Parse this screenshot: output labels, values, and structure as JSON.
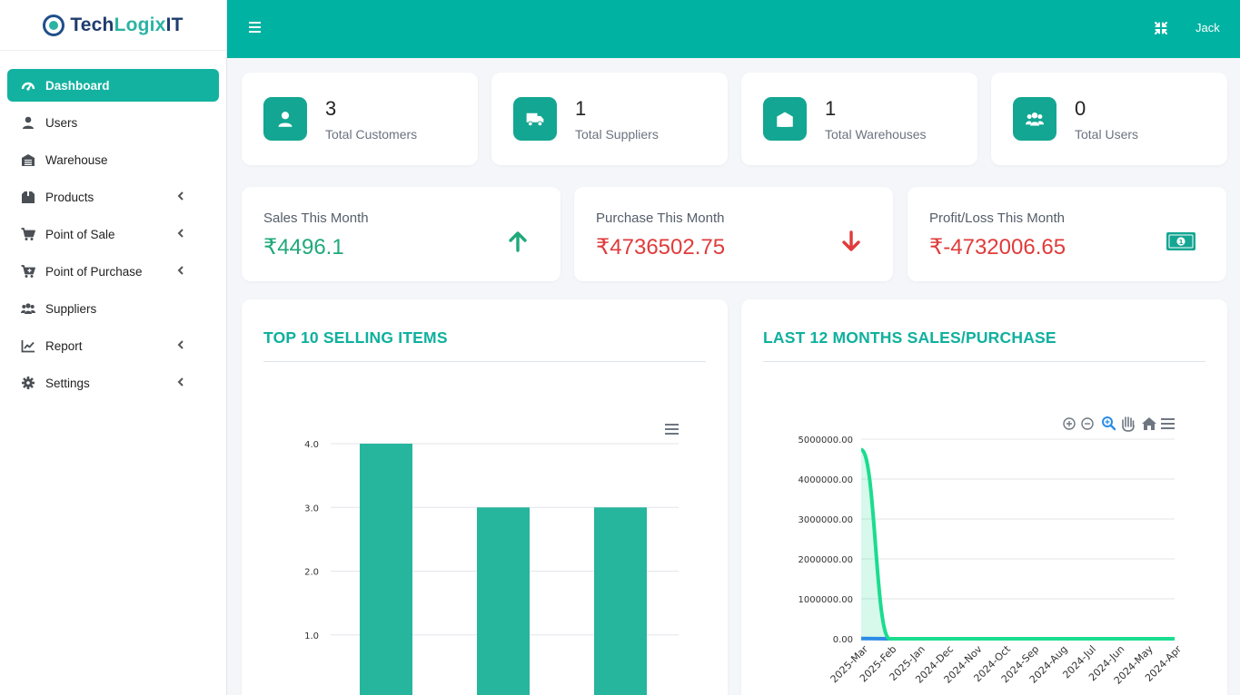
{
  "brand": {
    "part1": "Tech",
    "part2": "Logix",
    "part3": "IT"
  },
  "sidebar": {
    "items": [
      {
        "label": "Dashboard",
        "icon": "gauge-icon",
        "active": true,
        "has_children": false
      },
      {
        "label": "Users",
        "icon": "user-icon",
        "active": false,
        "has_children": false
      },
      {
        "label": "Warehouse",
        "icon": "warehouse-icon",
        "active": false,
        "has_children": false
      },
      {
        "label": "Products",
        "icon": "box-icon",
        "active": false,
        "has_children": true
      },
      {
        "label": "Point of Sale",
        "icon": "cart-icon",
        "active": false,
        "has_children": true
      },
      {
        "label": "Point of Purchase",
        "icon": "cart-plus-icon",
        "active": false,
        "has_children": true
      },
      {
        "label": "Suppliers",
        "icon": "users-icon",
        "active": false,
        "has_children": false
      },
      {
        "label": "Report",
        "icon": "chart-line-icon",
        "active": false,
        "has_children": true
      },
      {
        "label": "Settings",
        "icon": "gear-icon",
        "active": false,
        "has_children": true
      }
    ]
  },
  "topbar": {
    "user_name": "Jack"
  },
  "stats": [
    {
      "value": "3",
      "label": "Total Customers",
      "icon": "user-icon"
    },
    {
      "value": "1",
      "label": "Total Suppliers",
      "icon": "truck-icon"
    },
    {
      "value": "1",
      "label": "Total Warehouses",
      "icon": "warehouse-icon"
    },
    {
      "value": "0",
      "label": "Total Users",
      "icon": "users-icon"
    }
  ],
  "monthly": [
    {
      "label": "Sales This Month",
      "value": "₹4496.1",
      "color": "#1fa97a",
      "icon": "arrow-up-icon"
    },
    {
      "label": "Purchase This Month",
      "value": "₹4736502.75",
      "color": "#e03b3b",
      "icon": "arrow-down-icon"
    },
    {
      "label": "Profit/Loss This Month",
      "value": "₹-4732006.65",
      "color": "#e03b3b",
      "icon": "money-bill-icon"
    }
  ],
  "colors": {
    "accent": "#00b2a2",
    "bar": "#26b59d",
    "sales_line": "#1bdc8f",
    "purchase_line": "#2b8ce6"
  },
  "panels": {
    "top_selling_title": "TOP 10 SELLING ITEMS",
    "sales_purchase_title": "LAST 12 MONTHS SALES/PURCHASE"
  },
  "chart_data": [
    {
      "type": "bar",
      "title": "TOP 10 SELLING ITEMS",
      "categories": [
        "",
        "",
        ""
      ],
      "values": [
        4,
        3,
        3
      ],
      "ylim": [
        0,
        4
      ],
      "y_ticks": [
        "1.0",
        "2.0",
        "3.0",
        "4.0"
      ],
      "grid": true
    },
    {
      "type": "area",
      "title": "LAST 12 MONTHS SALES/PURCHASE",
      "categories": [
        "2025-Mar",
        "2025-Feb",
        "2025-Jan",
        "2024-Dec",
        "2024-Nov",
        "2024-Oct",
        "2024-Sep",
        "2024-Aug",
        "2024-Jul",
        "2024-Jun",
        "2024-May",
        "2024-Apr"
      ],
      "series": [
        {
          "values": [
            4736502.75,
            0,
            0,
            0,
            0,
            0,
            0,
            0,
            0,
            0,
            0,
            0
          ]
        },
        {
          "values": [
            4496.1,
            0,
            0,
            0,
            0,
            0,
            0,
            0,
            0,
            0,
            0,
            0
          ]
        }
      ],
      "ylim": [
        0,
        5000000
      ],
      "y_ticks": [
        "0.00",
        "1000000.00",
        "2000000.00",
        "3000000.00",
        "4000000.00",
        "5000000.00"
      ],
      "grid": true
    }
  ]
}
